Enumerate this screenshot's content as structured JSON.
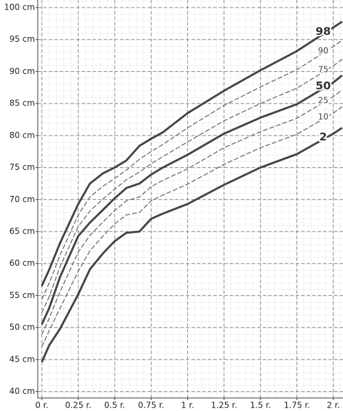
{
  "chart_data": {
    "type": "line",
    "x": [
      0,
      0.05,
      0.125,
      0.25,
      0.33,
      0.42,
      0.5,
      0.58,
      0.67,
      0.75,
      0.83,
      1,
      1.25,
      1.5,
      1.75,
      2,
      2.06
    ],
    "series": [
      {
        "name": "98",
        "color": "#444444",
        "bold": true,
        "values": [
          56.5,
          59.0,
          63.2,
          69.3,
          72.5,
          74.1,
          75.0,
          76.1,
          78.4,
          79.5,
          80.5,
          83.5,
          87.0,
          90.2,
          93.2,
          96.9,
          97.8
        ]
      },
      {
        "name": "90",
        "color": "#666666",
        "bold": false,
        "values": [
          54.4,
          56.9,
          61.3,
          67.6,
          70.4,
          72.1,
          73.3,
          74.6,
          76.3,
          77.5,
          78.6,
          81.2,
          84.7,
          87.6,
          90.3,
          93.9,
          94.9
        ]
      },
      {
        "name": "75",
        "color": "#666666",
        "bold": false,
        "values": [
          52.3,
          54.8,
          59.5,
          65.8,
          68.2,
          70.1,
          71.6,
          73.1,
          74.3,
          75.6,
          76.7,
          79.0,
          82.3,
          85.0,
          87.4,
          90.9,
          91.9
        ]
      },
      {
        "name": "50",
        "color": "#444444",
        "bold": true,
        "values": [
          50.5,
          53.0,
          57.9,
          64.3,
          66.4,
          68.4,
          70.2,
          71.8,
          72.5,
          73.9,
          75.0,
          77.0,
          80.3,
          82.8,
          84.9,
          88.3,
          89.4
        ]
      },
      {
        "name": "25",
        "color": "#666666",
        "bold": false,
        "values": [
          48.9,
          51.4,
          55.6,
          61.8,
          64.4,
          66.5,
          68.3,
          69.8,
          70.4,
          72.0,
          73.0,
          74.8,
          78.1,
          80.6,
          82.7,
          86.1,
          87.1
        ]
      },
      {
        "name": "10",
        "color": "#666666",
        "bold": false,
        "values": [
          47.0,
          49.5,
          53.0,
          58.8,
          62.0,
          64.3,
          66.2,
          67.6,
          68.0,
          69.8,
          70.7,
          72.4,
          75.5,
          78.1,
          80.2,
          83.5,
          84.5
        ]
      },
      {
        "name": "2",
        "color": "#444444",
        "bold": true,
        "values": [
          44.6,
          47.2,
          49.8,
          55.2,
          59.1,
          61.6,
          63.5,
          64.8,
          65.0,
          67.0,
          67.8,
          69.3,
          72.3,
          75.0,
          77.1,
          80.3,
          81.2
        ]
      }
    ],
    "xlim": [
      -0.028,
      2.066
    ],
    "ylim": [
      38.99,
      101.18
    ],
    "xticks": [
      {
        "value": 0,
        "label": "0 r."
      },
      {
        "value": 0.25,
        "label": "0.25 r."
      },
      {
        "value": 0.5,
        "label": "0.5 r."
      },
      {
        "value": 0.75,
        "label": "0.75 r."
      },
      {
        "value": 1,
        "label": "1 r."
      },
      {
        "value": 1.25,
        "label": "1.25 r."
      },
      {
        "value": 1.5,
        "label": "1.5 r."
      },
      {
        "value": 1.75,
        "label": "1.75 r."
      },
      {
        "value": 2,
        "label": "2 r."
      }
    ],
    "yticks": [
      {
        "value": 40,
        "label": "40 cm"
      },
      {
        "value": 45,
        "label": "45 cm"
      },
      {
        "value": 50,
        "label": "50 cm"
      },
      {
        "value": 55,
        "label": "55 cm"
      },
      {
        "value": 60,
        "label": "60 cm"
      },
      {
        "value": 65,
        "label": "65 cm"
      },
      {
        "value": 70,
        "label": "70 cm"
      },
      {
        "value": 75,
        "label": "75 cm"
      },
      {
        "value": 80,
        "label": "80 cm"
      },
      {
        "value": 85,
        "label": "85 cm"
      },
      {
        "value": 90,
        "label": "90 cm"
      },
      {
        "value": 95,
        "label": "95 cm"
      },
      {
        "value": 100,
        "label": "100 cm"
      }
    ],
    "grid": true
  }
}
